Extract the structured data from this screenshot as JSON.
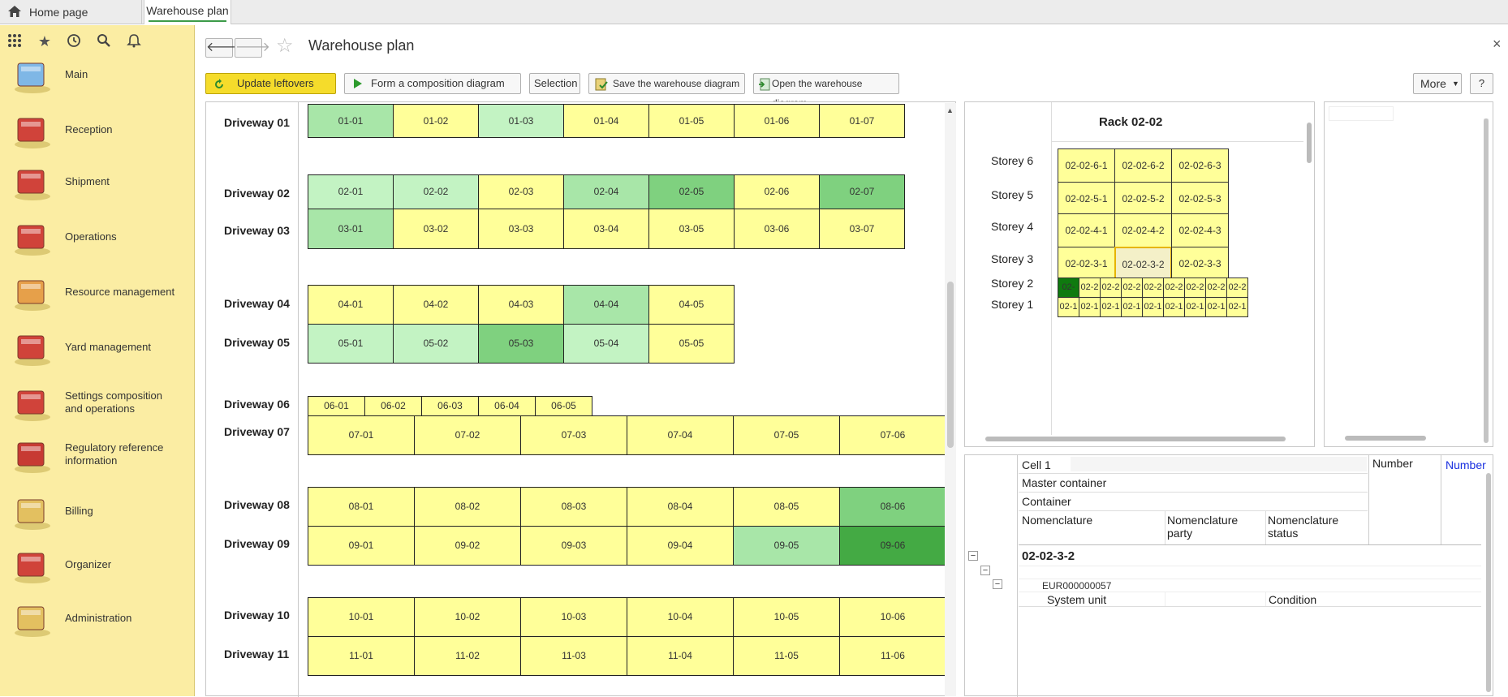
{
  "tabs": {
    "home": "Home page",
    "active": "Warehouse plan"
  },
  "sidebar": {
    "items": [
      {
        "label": "Main"
      },
      {
        "label": "Reception"
      },
      {
        "label": "Shipment"
      },
      {
        "label": "Operations"
      },
      {
        "label": "Resource management"
      },
      {
        "label": "Yard management"
      },
      {
        "label": "Settings composition\nand operations"
      },
      {
        "label": "Regulatory reference\ninformation"
      },
      {
        "label": "Billing"
      },
      {
        "label": "Organizer"
      },
      {
        "label": "Administration"
      }
    ]
  },
  "header": {
    "title": "Warehouse plan"
  },
  "toolbar": {
    "update": "Update leftovers",
    "form": "Form a composition diagram",
    "selection": "Selection",
    "save": "Save the warehouse diagram",
    "open": "Open the warehouse diagram",
    "more": "More",
    "help": "?"
  },
  "colors": {
    "yellow": "#ffff99",
    "light": "#c3f3c3",
    "mid": "#a8e6a8",
    "med": "#7fd17f",
    "dark": "#44aa44",
    "deep": "#0f7a0f"
  },
  "plan": {
    "driveways": [
      {
        "label": "Driveway 01",
        "cells": [
          "01-01",
          "01-02",
          "01-03",
          "01-04",
          "01-05",
          "01-06",
          "01-07"
        ],
        "colors": [
          "mid",
          "yellow",
          "light",
          "yellow",
          "yellow",
          "yellow",
          "yellow"
        ]
      },
      {
        "label": "Driveway 02",
        "cells": [
          "02-01",
          "02-02",
          "02-03",
          "02-04",
          "02-05",
          "02-06",
          "02-07"
        ],
        "colors": [
          "light",
          "light",
          "yellow",
          "mid",
          "med",
          "yellow",
          "med"
        ]
      },
      {
        "label": "Driveway 03",
        "cells": [
          "03-01",
          "03-02",
          "03-03",
          "03-04",
          "03-05",
          "03-06",
          "03-07"
        ],
        "colors": [
          "mid",
          "yellow",
          "yellow",
          "yellow",
          "yellow",
          "yellow",
          "yellow"
        ]
      },
      {
        "label": "Driveway 04",
        "cells": [
          "04-01",
          "04-02",
          "04-03",
          "04-04",
          "04-05"
        ],
        "colors": [
          "yellow",
          "yellow",
          "yellow",
          "mid",
          "yellow"
        ]
      },
      {
        "label": "Driveway 05",
        "cells": [
          "05-01",
          "05-02",
          "05-03",
          "05-04",
          "05-05"
        ],
        "colors": [
          "light",
          "light",
          "med",
          "light",
          "yellow"
        ]
      },
      {
        "label": "Driveway 06",
        "cells": [
          "06-01",
          "06-02",
          "06-03",
          "06-04",
          "06-05"
        ],
        "colors": [
          "yellow",
          "yellow",
          "yellow",
          "yellow",
          "yellow"
        ]
      },
      {
        "label": "Driveway 07",
        "cells": [
          "07-01",
          "07-02",
          "07-03",
          "07-04",
          "07-05",
          "07-06"
        ],
        "colors": [
          "yellow",
          "yellow",
          "yellow",
          "yellow",
          "yellow",
          "yellow"
        ]
      },
      {
        "label": "Driveway 08",
        "cells": [
          "08-01",
          "08-02",
          "08-03",
          "08-04",
          "08-05",
          "08-06"
        ],
        "colors": [
          "yellow",
          "yellow",
          "yellow",
          "yellow",
          "yellow",
          "med"
        ]
      },
      {
        "label": "Driveway 09",
        "cells": [
          "09-01",
          "09-02",
          "09-03",
          "09-04",
          "09-05",
          "09-06"
        ],
        "colors": [
          "yellow",
          "yellow",
          "yellow",
          "yellow",
          "mid",
          "dark"
        ]
      },
      {
        "label": "Driveway 10",
        "cells": [
          "10-01",
          "10-02",
          "10-03",
          "10-04",
          "10-05",
          "10-06"
        ],
        "colors": [
          "yellow",
          "yellow",
          "yellow",
          "yellow",
          "yellow",
          "yellow"
        ]
      },
      {
        "label": "Driveway 11",
        "cells": [
          "11-01",
          "11-02",
          "11-03",
          "11-04",
          "11-05",
          "11-06"
        ],
        "colors": [
          "yellow",
          "yellow",
          "yellow",
          "yellow",
          "yellow",
          "yellow"
        ]
      }
    ]
  },
  "rack": {
    "title": "Rack 02-02",
    "storeys": [
      {
        "label": "Storey 6",
        "cells": [
          "02-02-6-1",
          "02-02-6-2",
          "02-02-6-3"
        ]
      },
      {
        "label": "Storey 5",
        "cells": [
          "02-02-5-1",
          "02-02-5-2",
          "02-02-5-3"
        ]
      },
      {
        "label": "Storey 4",
        "cells": [
          "02-02-4-1",
          "02-02-4-2",
          "02-02-4-3"
        ]
      },
      {
        "label": "Storey 3",
        "cells": [
          "02-02-3-1",
          "02-02-3-2",
          "02-02-3-3"
        ]
      },
      {
        "label": "Storey 2",
        "cells": [
          "02-",
          "02-2",
          "02-2",
          "02-2",
          "02-2",
          "02-2",
          "02-2",
          "02-2",
          "02-2"
        ]
      },
      {
        "label": "Storey 1",
        "cells": [
          "02-1",
          "02-1",
          "02-1",
          "02-1",
          "02-1",
          "02-1",
          "02-1",
          "02-1",
          "02-1"
        ]
      }
    ],
    "selected": "02-02-3-2"
  },
  "details": {
    "cell": "Cell 1",
    "master_container": "Master container",
    "container": "Container",
    "nomenclature": "Nomenclature",
    "nomenclature_party": "Nomenclature\nparty",
    "nomenclature_status": "Nomenclature\nstatus",
    "number": "Number",
    "number_link": "Number",
    "row_cell": "02-02-3-2",
    "row_container": "EUR000000057",
    "row_item": "System unit",
    "row_status": "Condition"
  }
}
